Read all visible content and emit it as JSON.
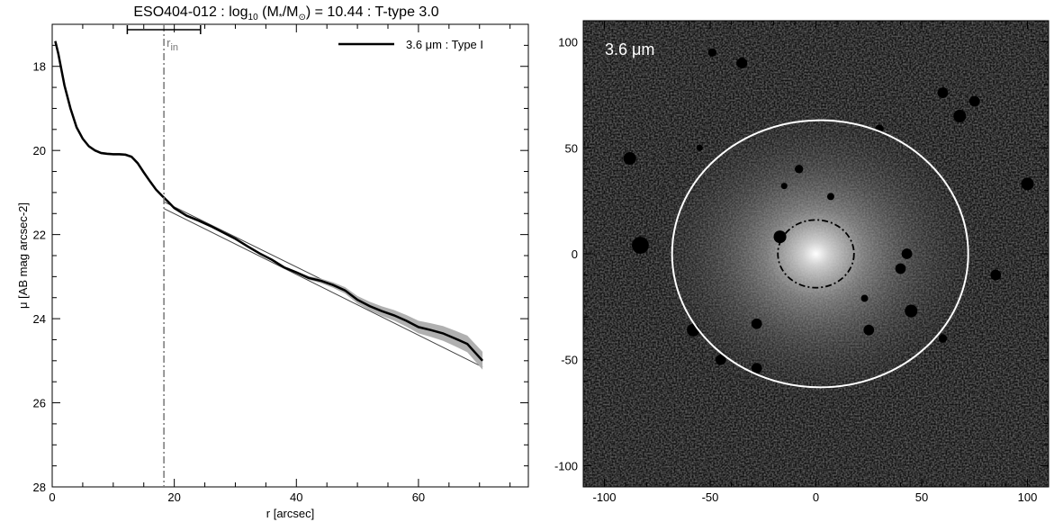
{
  "title": {
    "prefix": "ESO404-012 : log",
    "sub": "10",
    "mid1": " (M",
    "sub2": "*",
    "mid2": "/M",
    "sun": "⊙",
    "suffix": ") = 10.44 : T-type 3.0"
  },
  "chart_data": [
    {
      "type": "line",
      "title": "ESO404-012 : log10 (M*/M⊙) = 10.44 : T-type 3.0",
      "xlabel": "r [arcsec]",
      "ylabel": "μ [AB mag arcsec-2]",
      "xlim": [
        0,
        78
      ],
      "ylim": [
        28,
        17
      ],
      "y_inverted": true,
      "xticks": [
        0,
        20,
        40,
        60
      ],
      "yticks": [
        18,
        20,
        22,
        24,
        26,
        28
      ],
      "legend": {
        "position": "top-right",
        "label": "3.6 μm : Type I"
      },
      "annotation": {
        "label": "r",
        "label_sub": "in",
        "r_in": 18.3,
        "error_bar": [
          12.3,
          24.3
        ]
      },
      "series": [
        {
          "name": "3.6 μm : Type I",
          "x": [
            0.5,
            1,
            2,
            3,
            4,
            5,
            6,
            7,
            8,
            9,
            10,
            11,
            12,
            13,
            14,
            15,
            16,
            17,
            18,
            19,
            20,
            22,
            24,
            26,
            28,
            30,
            32,
            34,
            36,
            38,
            40,
            42,
            44,
            46,
            48,
            50,
            52,
            54,
            56,
            58,
            60,
            62,
            64,
            66,
            68,
            70.5
          ],
          "y": [
            17.4,
            17.7,
            18.45,
            19.0,
            19.45,
            19.72,
            19.9,
            20.0,
            20.06,
            20.08,
            20.09,
            20.09,
            20.1,
            20.15,
            20.3,
            20.52,
            20.73,
            20.93,
            21.08,
            21.22,
            21.37,
            21.55,
            21.67,
            21.8,
            21.95,
            22.1,
            22.28,
            22.45,
            22.6,
            22.78,
            22.9,
            23.03,
            23.1,
            23.2,
            23.33,
            23.55,
            23.7,
            23.82,
            23.92,
            24.05,
            24.2,
            24.27,
            24.35,
            24.47,
            24.6,
            25.0
          ]
        }
      ],
      "fit_lines": [
        {
          "x": [
            18.3,
            70.5
          ],
          "y": [
            21.38,
            25.15
          ]
        },
        {
          "x": [
            18.3,
            70.5
          ],
          "y": [
            21.22,
            24.95
          ]
        }
      ]
    },
    {
      "type": "heatmap",
      "label": "3.6 μm",
      "xlim": [
        -110,
        110
      ],
      "ylim": [
        -110,
        110
      ],
      "xticks": [
        -100,
        -50,
        0,
        50,
        100
      ],
      "yticks": [
        -100,
        -50,
        0,
        50,
        100
      ],
      "outer_ellipse": {
        "cx": 2,
        "cy": 0,
        "rx": 70,
        "ry": 63,
        "color": "#ffffff"
      },
      "inner_ellipse": {
        "cx": 0,
        "cy": 0,
        "rx": 18,
        "ry": 16,
        "style": "dash-dot",
        "color": "#000000"
      },
      "masked_stars": [
        [
          -17,
          8,
          3
        ],
        [
          -28,
          -33,
          2.5
        ],
        [
          -58,
          -36,
          3
        ],
        [
          -83,
          4,
          4
        ],
        [
          -88,
          45,
          3
        ],
        [
          -45,
          -50,
          2.5
        ],
        [
          -28,
          -54,
          2.5
        ],
        [
          25,
          -36,
          2.5
        ],
        [
          45,
          -27,
          3
        ],
        [
          40,
          -7,
          2.5
        ],
        [
          43,
          0,
          2.5
        ],
        [
          23,
          -21,
          1.7
        ],
        [
          7,
          27,
          1.7
        ],
        [
          -15,
          32,
          1.5
        ],
        [
          -8,
          40,
          2
        ],
        [
          30,
          59,
          2
        ],
        [
          60,
          76,
          2.5
        ],
        [
          68,
          65,
          3
        ],
        [
          75,
          72,
          2.5
        ],
        [
          100,
          33,
          3
        ],
        [
          -35,
          90,
          2.5
        ],
        [
          -49,
          95,
          2
        ],
        [
          -55,
          50,
          1.5
        ],
        [
          85,
          -10,
          2.5
        ],
        [
          60,
          -40,
          2
        ]
      ]
    }
  ]
}
